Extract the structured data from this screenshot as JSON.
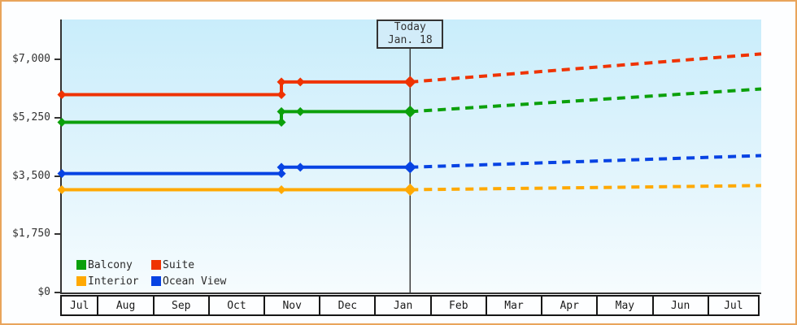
{
  "page": {
    "border_color": "#e9a45b",
    "background": "#fdfeff"
  },
  "today": {
    "line1": "Today",
    "line2": "Jan. 18",
    "t": 0.498
  },
  "y_axis": {
    "tick_labels": [
      "$0",
      "$1,750",
      "$3,500",
      "$5,250",
      "$7,000"
    ],
    "tick_values": [
      0,
      1750,
      3500,
      5250,
      7000
    ]
  },
  "legend": {
    "items": [
      {
        "label": "Balcony",
        "color": "#0ba00b"
      },
      {
        "label": "Suite",
        "color": "#ef3302"
      },
      {
        "label": "Interior",
        "color": "#ffa902"
      },
      {
        "label": "Ocean View",
        "color": "#0743e3"
      }
    ]
  },
  "chart_data": {
    "type": "line",
    "title": "",
    "x_months": [
      "Jul",
      "Aug",
      "Sep",
      "Oct",
      "Nov",
      "Dec",
      "Jan",
      "Feb",
      "Mar",
      "Apr",
      "May",
      "Jun",
      "Jul"
    ],
    "today_label": "Jan. 18",
    "today_t": 0.498,
    "ylim": [
      0,
      8200
    ],
    "y_ticks": [
      0,
      1750,
      3500,
      5250,
      7000
    ],
    "grid": false,
    "legend_position": "bottom-left-inside",
    "note": "t is fractional position across the 12-month window (mid-Jul to mid-Jul); solid history left of today, dotted projection right of today",
    "series": [
      {
        "name": "Suite",
        "color": "#ef3302",
        "history": [
          [
            0,
            5940
          ],
          [
            0.314,
            5940
          ],
          [
            0.314,
            6320
          ],
          [
            0.498,
            6320
          ]
        ],
        "markers": [
          [
            0,
            5940
          ],
          [
            0.314,
            5940
          ],
          [
            0.314,
            6320
          ],
          [
            0.341,
            6320
          ]
        ],
        "today_point": [
          0.498,
          6320
        ],
        "projection": [
          [
            0.498,
            6320
          ],
          [
            1,
            7160
          ]
        ]
      },
      {
        "name": "Balcony",
        "color": "#0ba00b",
        "history": [
          [
            0,
            5110
          ],
          [
            0.314,
            5110
          ],
          [
            0.314,
            5430
          ],
          [
            0.498,
            5430
          ]
        ],
        "markers": [
          [
            0,
            5110
          ],
          [
            0.314,
            5110
          ],
          [
            0.314,
            5430
          ],
          [
            0.341,
            5430
          ]
        ],
        "today_point": [
          0.498,
          5430
        ],
        "projection": [
          [
            0.498,
            5430
          ],
          [
            1,
            6110
          ]
        ]
      },
      {
        "name": "Ocean View",
        "color": "#0743e3",
        "history": [
          [
            0,
            3570
          ],
          [
            0.314,
            3570
          ],
          [
            0.314,
            3760
          ],
          [
            0.498,
            3760
          ]
        ],
        "markers": [
          [
            0,
            3570
          ],
          [
            0.314,
            3570
          ],
          [
            0.314,
            3760
          ],
          [
            0.341,
            3760
          ]
        ],
        "today_point": [
          0.498,
          3760
        ],
        "projection": [
          [
            0.498,
            3760
          ],
          [
            1,
            4110
          ]
        ]
      },
      {
        "name": "Interior",
        "color": "#ffa902",
        "history": [
          [
            0,
            3085
          ],
          [
            0.498,
            3085
          ]
        ],
        "markers": [
          [
            0,
            3085
          ],
          [
            0.314,
            3085
          ]
        ],
        "today_point": [
          0.498,
          3085
        ],
        "projection": [
          [
            0.498,
            3085
          ],
          [
            1,
            3210
          ]
        ]
      }
    ]
  }
}
